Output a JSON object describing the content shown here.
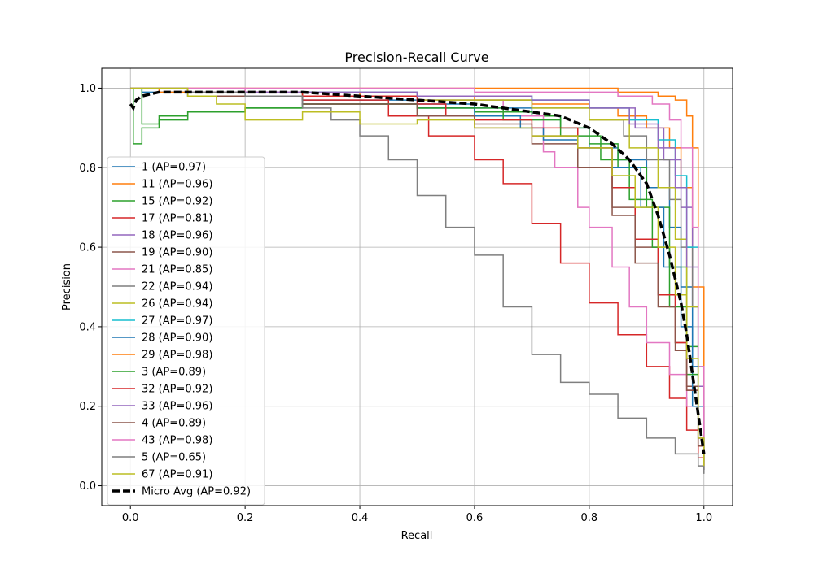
{
  "chart_data": {
    "type": "line",
    "title": "Precision-Recall Curve",
    "xlabel": "Recall",
    "ylabel": "Precision",
    "xlim": [
      -0.05,
      1.05
    ],
    "ylim": [
      -0.05,
      1.05
    ],
    "x_ticks": [
      0.0,
      0.2,
      0.4,
      0.6,
      0.8,
      1.0
    ],
    "y_ticks": [
      0.0,
      0.2,
      0.4,
      0.6,
      0.8,
      1.0
    ],
    "x_tick_labels": [
      "0.0",
      "0.2",
      "0.4",
      "0.6",
      "0.8",
      "1.0"
    ],
    "y_tick_labels": [
      "0.0",
      "0.2",
      "0.4",
      "0.6",
      "0.8",
      "1.0"
    ],
    "grid": true,
    "legend_position": "lower-left",
    "series": [
      {
        "name": "1 (AP=0.97)",
        "color": "#1f77b4",
        "x": [
          0,
          0.02,
          0.1,
          0.3,
          0.5,
          0.6,
          0.7,
          0.75,
          0.8,
          0.85,
          0.9,
          0.94,
          0.96,
          0.98,
          0.99,
          1.0
        ],
        "y": [
          1.0,
          0.99,
          0.98,
          0.97,
          0.96,
          0.95,
          0.93,
          0.9,
          0.85,
          0.82,
          0.75,
          0.65,
          0.5,
          0.3,
          0.12,
          0.04
        ]
      },
      {
        "name": "11 (AP=0.96)",
        "color": "#ff7f0e",
        "x": [
          0,
          0.05,
          0.2,
          0.4,
          0.6,
          0.7,
          0.8,
          0.85,
          0.9,
          0.94,
          0.96,
          0.98,
          0.99,
          1.0
        ],
        "y": [
          1.0,
          0.99,
          0.99,
          0.98,
          0.97,
          0.96,
          0.95,
          0.93,
          0.9,
          0.85,
          0.75,
          0.5,
          0.2,
          0.05
        ]
      },
      {
        "name": "15 (AP=0.92)",
        "color": "#2ca02c",
        "x": [
          0,
          0.005,
          0.02,
          0.05,
          0.1,
          0.2,
          0.3,
          0.4,
          0.5,
          0.6,
          0.7,
          0.75,
          0.8,
          0.85,
          0.9,
          0.94,
          0.97,
          0.99,
          1.0
        ],
        "y": [
          1.0,
          0.86,
          0.9,
          0.92,
          0.94,
          0.95,
          0.96,
          0.96,
          0.95,
          0.94,
          0.93,
          0.9,
          0.86,
          0.8,
          0.7,
          0.55,
          0.35,
          0.12,
          0.04
        ]
      },
      {
        "name": "17 (AP=0.81)",
        "color": "#d62728",
        "x": [
          0,
          0.1,
          0.3,
          0.45,
          0.52,
          0.6,
          0.65,
          0.7,
          0.75,
          0.8,
          0.85,
          0.9,
          0.94,
          0.97,
          0.99,
          1.0
        ],
        "y": [
          1.0,
          0.99,
          0.97,
          0.93,
          0.88,
          0.82,
          0.76,
          0.66,
          0.56,
          0.46,
          0.38,
          0.3,
          0.22,
          0.14,
          0.07,
          0.04
        ]
      },
      {
        "name": "18 (AP=0.96)",
        "color": "#9467bd",
        "x": [
          0,
          0.1,
          0.3,
          0.5,
          0.7,
          0.8,
          0.88,
          0.93,
          0.96,
          0.98,
          0.99,
          1.0
        ],
        "y": [
          1.0,
          0.99,
          0.99,
          0.98,
          0.97,
          0.95,
          0.9,
          0.82,
          0.7,
          0.45,
          0.2,
          0.05
        ]
      },
      {
        "name": "19 (AP=0.90)",
        "color": "#8c564b",
        "x": [
          0,
          0.1,
          0.3,
          0.5,
          0.6,
          0.7,
          0.78,
          0.84,
          0.88,
          0.92,
          0.95,
          0.97,
          0.99,
          1.0
        ],
        "y": [
          1.0,
          0.98,
          0.96,
          0.93,
          0.9,
          0.86,
          0.8,
          0.7,
          0.6,
          0.48,
          0.36,
          0.25,
          0.12,
          0.04
        ]
      },
      {
        "name": "21 (AP=0.85)",
        "color": "#e377c2",
        "x": [
          0,
          0.2,
          0.5,
          0.65,
          0.72,
          0.74,
          0.78,
          0.8,
          0.84,
          0.87,
          0.9,
          0.94,
          0.97,
          0.99,
          1.0
        ],
        "y": [
          1.0,
          0.99,
          0.97,
          0.93,
          0.84,
          0.8,
          0.7,
          0.65,
          0.55,
          0.45,
          0.36,
          0.28,
          0.2,
          0.12,
          0.04
        ]
      },
      {
        "name": "22 (AP=0.94)",
        "color": "#7f7f7f",
        "x": [
          0,
          0.1,
          0.3,
          0.5,
          0.7,
          0.8,
          0.86,
          0.9,
          0.94,
          0.96,
          0.98,
          0.99,
          1.0
        ],
        "y": [
          1.0,
          0.99,
          0.98,
          0.97,
          0.95,
          0.92,
          0.88,
          0.82,
          0.72,
          0.6,
          0.45,
          0.25,
          0.05
        ]
      },
      {
        "name": "26 (AP=0.94)",
        "color": "#bcbd22",
        "x": [
          0,
          0.1,
          0.3,
          0.5,
          0.7,
          0.8,
          0.87,
          0.92,
          0.95,
          0.97,
          0.99,
          1.0
        ],
        "y": [
          1.0,
          0.99,
          0.98,
          0.97,
          0.95,
          0.92,
          0.85,
          0.75,
          0.62,
          0.45,
          0.2,
          0.05
        ]
      },
      {
        "name": "27 (AP=0.97)",
        "color": "#17becf",
        "x": [
          0,
          0.1,
          0.3,
          0.5,
          0.7,
          0.8,
          0.87,
          0.92,
          0.95,
          0.97,
          0.99,
          1.0
        ],
        "y": [
          1.0,
          0.99,
          0.99,
          0.98,
          0.97,
          0.95,
          0.92,
          0.87,
          0.78,
          0.6,
          0.3,
          0.06
        ]
      },
      {
        "name": "28 (AP=0.90)",
        "color": "#1f77b4",
        "x": [
          0,
          0.1,
          0.3,
          0.5,
          0.6,
          0.68,
          0.72,
          0.78,
          0.84,
          0.89,
          0.93,
          0.96,
          0.98,
          1.0
        ],
        "y": [
          1.0,
          0.98,
          0.96,
          0.95,
          0.93,
          0.9,
          0.87,
          0.85,
          0.8,
          0.7,
          0.55,
          0.4,
          0.2,
          0.04
        ]
      },
      {
        "name": "29 (AP=0.98)",
        "color": "#ff7f0e",
        "x": [
          0,
          0.2,
          0.4,
          0.6,
          0.75,
          0.85,
          0.92,
          0.95,
          0.97,
          0.98,
          0.99,
          1.0
        ],
        "y": [
          1.0,
          1.0,
          1.0,
          1.0,
          1.0,
          0.99,
          0.98,
          0.97,
          0.93,
          0.85,
          0.5,
          0.05
        ]
      },
      {
        "name": "3 (AP=0.89)",
        "color": "#2ca02c",
        "x": [
          0,
          0.02,
          0.05,
          0.1,
          0.2,
          0.3,
          0.5,
          0.65,
          0.75,
          0.82,
          0.87,
          0.91,
          0.94,
          0.97,
          0.99,
          1.0
        ],
        "y": [
          1.0,
          0.91,
          0.93,
          0.94,
          0.95,
          0.96,
          0.95,
          0.92,
          0.88,
          0.82,
          0.72,
          0.6,
          0.45,
          0.28,
          0.1,
          0.04
        ]
      },
      {
        "name": "32 (AP=0.92)",
        "color": "#d62728",
        "x": [
          0,
          0.1,
          0.3,
          0.5,
          0.55,
          0.6,
          0.7,
          0.78,
          0.84,
          0.88,
          0.92,
          0.95,
          0.97,
          0.99,
          1.0
        ],
        "y": [
          1.0,
          0.99,
          0.98,
          0.96,
          0.93,
          0.92,
          0.9,
          0.85,
          0.75,
          0.62,
          0.48,
          0.36,
          0.24,
          0.1,
          0.04
        ]
      },
      {
        "name": "33 (AP=0.96)",
        "color": "#9467bd",
        "x": [
          0,
          0.1,
          0.3,
          0.5,
          0.7,
          0.8,
          0.87,
          0.92,
          0.95,
          0.97,
          0.99,
          1.0
        ],
        "y": [
          1.0,
          0.99,
          0.99,
          0.98,
          0.97,
          0.95,
          0.91,
          0.85,
          0.75,
          0.55,
          0.25,
          0.05
        ]
      },
      {
        "name": "4 (AP=0.89)",
        "color": "#8c564b",
        "x": [
          0,
          0.1,
          0.3,
          0.5,
          0.6,
          0.7,
          0.78,
          0.84,
          0.88,
          0.92,
          0.95,
          0.97,
          0.99,
          1.0
        ],
        "y": [
          1.0,
          0.98,
          0.96,
          0.93,
          0.91,
          0.88,
          0.8,
          0.68,
          0.56,
          0.45,
          0.34,
          0.24,
          0.1,
          0.04
        ]
      },
      {
        "name": "43 (AP=0.98)",
        "color": "#e377c2",
        "x": [
          0,
          0.2,
          0.4,
          0.6,
          0.75,
          0.85,
          0.91,
          0.94,
          0.96,
          0.98,
          0.99,
          1.0
        ],
        "y": [
          1.0,
          1.0,
          1.0,
          0.99,
          0.99,
          0.98,
          0.96,
          0.92,
          0.85,
          0.65,
          0.3,
          0.05
        ]
      },
      {
        "name": "5 (AP=0.65)",
        "color": "#7f7f7f",
        "x": [
          0,
          0.1,
          0.2,
          0.3,
          0.35,
          0.4,
          0.45,
          0.5,
          0.55,
          0.6,
          0.65,
          0.7,
          0.75,
          0.8,
          0.85,
          0.9,
          0.95,
          0.99,
          1.0
        ],
        "y": [
          1.0,
          0.99,
          0.98,
          0.95,
          0.92,
          0.88,
          0.82,
          0.73,
          0.65,
          0.58,
          0.45,
          0.33,
          0.26,
          0.23,
          0.17,
          0.12,
          0.08,
          0.05,
          0.03
        ]
      },
      {
        "name": "67 (AP=0.91)",
        "color": "#bcbd22",
        "x": [
          0,
          0.1,
          0.15,
          0.2,
          0.3,
          0.4,
          0.5,
          0.6,
          0.7,
          0.78,
          0.84,
          0.88,
          0.92,
          0.95,
          0.97,
          0.99,
          1.0
        ],
        "y": [
          1.0,
          0.98,
          0.96,
          0.92,
          0.94,
          0.91,
          0.92,
          0.9,
          0.88,
          0.85,
          0.78,
          0.7,
          0.6,
          0.48,
          0.32,
          0.12,
          0.05
        ]
      },
      {
        "name": "Micro Avg (AP=0.92)",
        "color": "#000000",
        "dashed": true,
        "x": [
          0,
          0.005,
          0.01,
          0.02,
          0.05,
          0.1,
          0.2,
          0.3,
          0.4,
          0.5,
          0.6,
          0.65,
          0.7,
          0.75,
          0.8,
          0.84,
          0.87,
          0.9,
          0.92,
          0.94,
          0.96,
          0.97,
          0.98,
          0.99,
          1.0
        ],
        "y": [
          0.96,
          0.95,
          0.97,
          0.98,
          0.99,
          0.99,
          0.99,
          0.99,
          0.98,
          0.97,
          0.96,
          0.95,
          0.94,
          0.93,
          0.9,
          0.86,
          0.82,
          0.76,
          0.68,
          0.58,
          0.46,
          0.38,
          0.28,
          0.18,
          0.08
        ]
      }
    ]
  }
}
